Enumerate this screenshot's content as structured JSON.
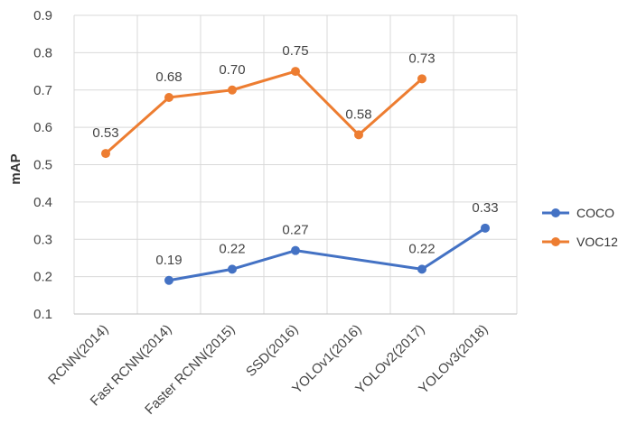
{
  "chart_data": {
    "type": "line",
    "title": "",
    "xlabel": "",
    "ylabel": "mAP",
    "categories": [
      "RCNN(2014)",
      "Fast RCNN(2014)",
      "Faster RCNN(2015)",
      "SSD(2016)",
      "YOLOv1(2016)",
      "YOLOv2(2017)",
      "YOLOv3(2018)"
    ],
    "ylim": [
      0.1,
      0.9
    ],
    "yticks": [
      "0.1",
      "0.2",
      "0.3",
      "0.4",
      "0.5",
      "0.6",
      "0.7",
      "0.8",
      "0.9"
    ],
    "grid": true,
    "legend_position": "right",
    "series": [
      {
        "name": "COCO",
        "color": "#4472c4",
        "values": [
          null,
          0.19,
          0.22,
          0.27,
          null,
          0.22,
          0.33
        ],
        "labels": [
          "",
          "0.19",
          "0.22",
          "0.27",
          "",
          "0.22",
          "0.33"
        ]
      },
      {
        "name": "VOC12",
        "color": "#ed7d31",
        "values": [
          0.53,
          0.68,
          0.7,
          0.75,
          0.58,
          0.73,
          null
        ],
        "labels": [
          "0.53",
          "0.68",
          "0.70",
          "0.75",
          "0.58",
          "0.73",
          ""
        ]
      }
    ]
  }
}
